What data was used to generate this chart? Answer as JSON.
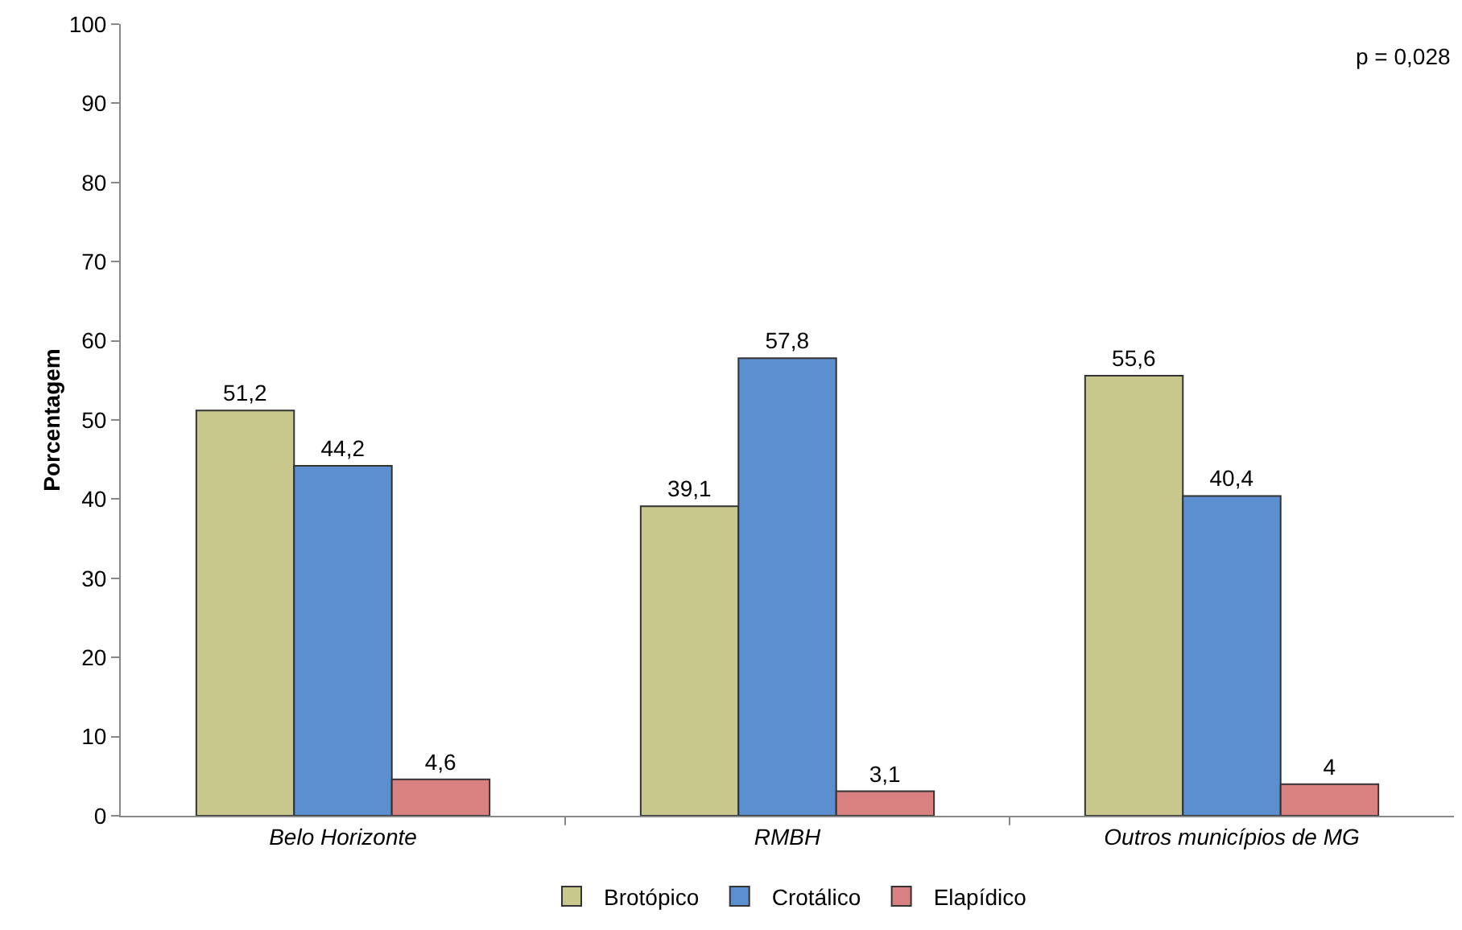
{
  "chart_data": {
    "type": "bar",
    "ylabel": "Porcentagem",
    "categories": [
      "Belo Horizonte",
      "RMBH",
      "Outros municípios de MG"
    ],
    "series": [
      {
        "name": "Brotópico",
        "color": "#c8c88c",
        "values": [
          51.2,
          39.1,
          55.6
        ],
        "value_labels": [
          "51,2",
          "39,1",
          "55,6"
        ]
      },
      {
        "name": "Crotálico",
        "color": "#5b8fd0",
        "values": [
          44.2,
          57.8,
          40.4
        ],
        "value_labels": [
          "44,2",
          "57,8",
          "40,4"
        ]
      },
      {
        "name": "Elapídico",
        "color": "#d98080",
        "values": [
          4.6,
          3.1,
          4
        ],
        "value_labels": [
          "4,6",
          "3,1",
          "4"
        ]
      }
    ],
    "ylim": [
      0,
      100
    ],
    "yticks": [
      0,
      10,
      20,
      30,
      40,
      50,
      60,
      70,
      80,
      90,
      100
    ],
    "grid": false,
    "legend": "bottom",
    "annotations": [
      "p = 0,028"
    ]
  }
}
